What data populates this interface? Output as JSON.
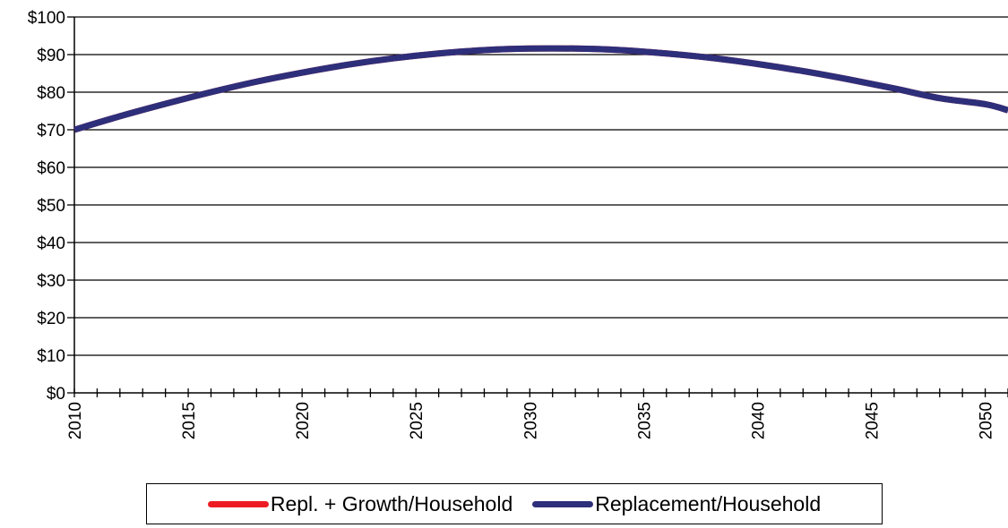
{
  "chart_data": {
    "type": "line",
    "title": "",
    "xlabel": "",
    "ylabel": "",
    "xlim": [
      2010,
      2051
    ],
    "ylim": [
      0,
      100
    ],
    "y_ticks": [
      0,
      10,
      20,
      30,
      40,
      50,
      60,
      70,
      80,
      90,
      100
    ],
    "y_tick_labels": [
      "$0",
      "$10",
      "$20",
      "$30",
      "$40",
      "$50",
      "$60",
      "$70",
      "$80",
      "$90",
      "$100"
    ],
    "x_tick_labels": [
      "2010",
      "2015",
      "2020",
      "2025",
      "2030",
      "2035",
      "2040",
      "2045",
      "2050"
    ],
    "x_label_years": [
      2010,
      2015,
      2020,
      2025,
      2030,
      2035,
      2040,
      2045,
      2050
    ],
    "grid": "horizontal",
    "legend_position": "bottom",
    "x": [
      2010,
      2012,
      2014,
      2016,
      2018,
      2020,
      2022,
      2024,
      2026,
      2028,
      2030,
      2032,
      2034,
      2036,
      2038,
      2040,
      2042,
      2044,
      2046,
      2048,
      2050,
      2051
    ],
    "series": [
      {
        "name": "Repl. + Growth/Household",
        "color": "#ed1c24",
        "values": [
          70.0,
          73.6,
          76.9,
          80.0,
          82.8,
          85.2,
          87.3,
          89.0,
          90.3,
          91.2,
          91.6,
          91.6,
          91.2,
          90.3,
          89.1,
          87.5,
          85.6,
          83.4,
          81.0,
          78.4,
          76.8,
          75.2
        ]
      },
      {
        "name": "Replacement/Household",
        "color": "#2e2f7a",
        "values": [
          70.0,
          73.6,
          76.9,
          80.0,
          82.8,
          85.2,
          87.3,
          89.0,
          90.3,
          91.2,
          91.6,
          91.6,
          91.2,
          90.3,
          89.1,
          87.5,
          85.6,
          83.4,
          81.0,
          78.4,
          76.8,
          75.2
        ]
      }
    ]
  }
}
